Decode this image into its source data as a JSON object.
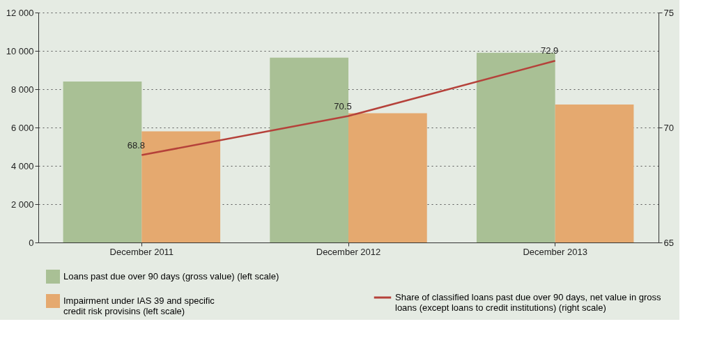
{
  "chart_data": {
    "type": "bar",
    "categories": [
      "December 2011",
      "December 2012",
      "December 2013"
    ],
    "series": [
      {
        "name": "Loans past due over 90 days (gross value) (left scale)",
        "color": "#a9c095",
        "values": [
          8400,
          9650,
          9900
        ]
      },
      {
        "name": "Impairment under IAS 39 and specific credit risk provisins (left scale)",
        "color": "#e5a96f",
        "values": [
          5800,
          6750,
          7200
        ]
      },
      {
        "name": "Share of classified loans past due over 90 days, net value in gross loans (except loans to credit institutions) (right scale)",
        "type": "line",
        "axis": "y2",
        "color": "#b5413a",
        "values": [
          68.8,
          70.5,
          72.9
        ],
        "value_labels": [
          "68.8",
          "70.5",
          "72.9"
        ]
      }
    ],
    "ylim": [
      0,
      12000
    ],
    "yticks": [
      0,
      {
        "value": 2000,
        "label": "2 000"
      },
      {
        "value": 4000,
        "label": "4 000"
      },
      {
        "value": 6000,
        "label": "6 000"
      },
      {
        "value": 8000,
        "label": "8 000"
      },
      {
        "value": 10000,
        "label": "10 000"
      },
      {
        "value": 12000,
        "label": "12 000"
      }
    ],
    "y2lim": [
      65,
      75
    ],
    "y2ticks": [
      65,
      70,
      75
    ],
    "grid": "y",
    "legend": "bottom",
    "marker": "none",
    "line_style": "solid"
  }
}
